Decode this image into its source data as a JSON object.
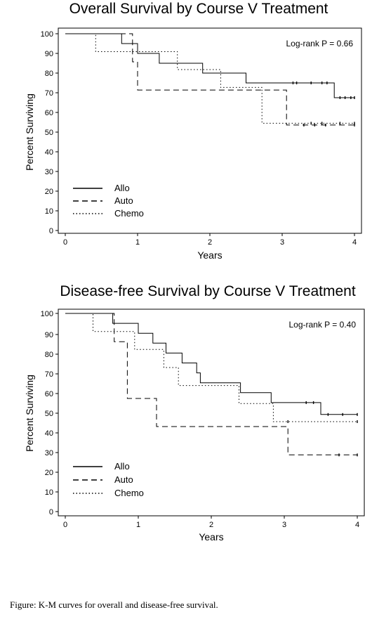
{
  "caption": "Figure: K-M curves for overall and disease-free survival.",
  "chart_data": [
    {
      "type": "line",
      "title": "Overall Survival by Course V Treatment",
      "xlabel": "Years",
      "ylabel": "Percent Surviving",
      "xlim": [
        0,
        4
      ],
      "ylim": [
        0,
        100
      ],
      "xticks": [
        "0",
        "1",
        "2",
        "3",
        "4"
      ],
      "yticks": [
        "0",
        "10",
        "20",
        "30",
        "40",
        "50",
        "60",
        "70",
        "80",
        "90",
        "100"
      ],
      "grid": false,
      "legend_position": "bottom-left",
      "annotation": "Log-rank P = 0.66",
      "series": [
        {
          "name": "Allo",
          "style": "solid",
          "x": [
            0,
            0.78,
            1.0,
            1.3,
            1.9,
            2.5,
            3.72,
            4.0
          ],
          "y": [
            100,
            95,
            90,
            85,
            80,
            75,
            67.5,
            67.5
          ],
          "censored_x": [
            3.15,
            3.2,
            3.4,
            3.55,
            3.62,
            3.8,
            3.87,
            3.95,
            4.0
          ]
        },
        {
          "name": "Auto",
          "style": "dashed",
          "x": [
            0,
            0.93,
            1.0,
            3.06,
            4.0
          ],
          "y": [
            100,
            85.7,
            71.4,
            53.6,
            53.6
          ],
          "censored_x": [
            3.3,
            3.45,
            3.6,
            4.0
          ]
        },
        {
          "name": "Chemo",
          "style": "dotted",
          "x": [
            0,
            0.42,
            0.95,
            1.55,
            2.15,
            2.72,
            4.0
          ],
          "y": [
            100,
            90.9,
            90.9,
            81.8,
            72.7,
            54.5,
            54.5
          ],
          "censored_x": [
            3.4,
            3.55,
            3.8,
            4.0
          ]
        }
      ]
    },
    {
      "type": "line",
      "title": "Disease-free Survival by Course V Treatment",
      "xlabel": "Years",
      "ylabel": "Percent Surviving",
      "xlim": [
        0,
        4
      ],
      "ylim": [
        0,
        100
      ],
      "xticks": [
        "0",
        "1",
        "2",
        "3",
        "4"
      ],
      "yticks": [
        "0",
        "10",
        "20",
        "30",
        "40",
        "50",
        "60",
        "70",
        "80",
        "90",
        "100"
      ],
      "grid": false,
      "legend_position": "bottom-left",
      "annotation": "Log-rank P = 0.40",
      "series": [
        {
          "name": "Allo",
          "style": "solid",
          "x": [
            0,
            0.65,
            1.0,
            1.2,
            1.38,
            1.6,
            1.8,
            1.85,
            2.4,
            2.82,
            3.5,
            4.0
          ],
          "y": [
            100,
            95,
            90,
            85,
            80,
            75,
            70,
            65,
            60,
            55,
            49,
            49
          ],
          "censored_x": [
            3.3,
            3.4,
            3.6,
            3.8,
            4.0
          ]
        },
        {
          "name": "Auto",
          "style": "dashed",
          "x": [
            0,
            0.67,
            0.85,
            1.25,
            3.05,
            4.0
          ],
          "y": [
            100,
            85.7,
            57.1,
            42.9,
            28.6,
            28.6
          ],
          "censored_x": [
            3.75,
            4.0
          ]
        },
        {
          "name": "Chemo",
          "style": "dotted",
          "x": [
            0,
            0.38,
            0.95,
            1.35,
            1.55,
            2.38,
            2.85,
            4.0
          ],
          "y": [
            100,
            90.9,
            81.8,
            72.7,
            63.6,
            54.5,
            45.4,
            45.4
          ],
          "censored_x": [
            3.05,
            4.0
          ]
        }
      ]
    }
  ]
}
